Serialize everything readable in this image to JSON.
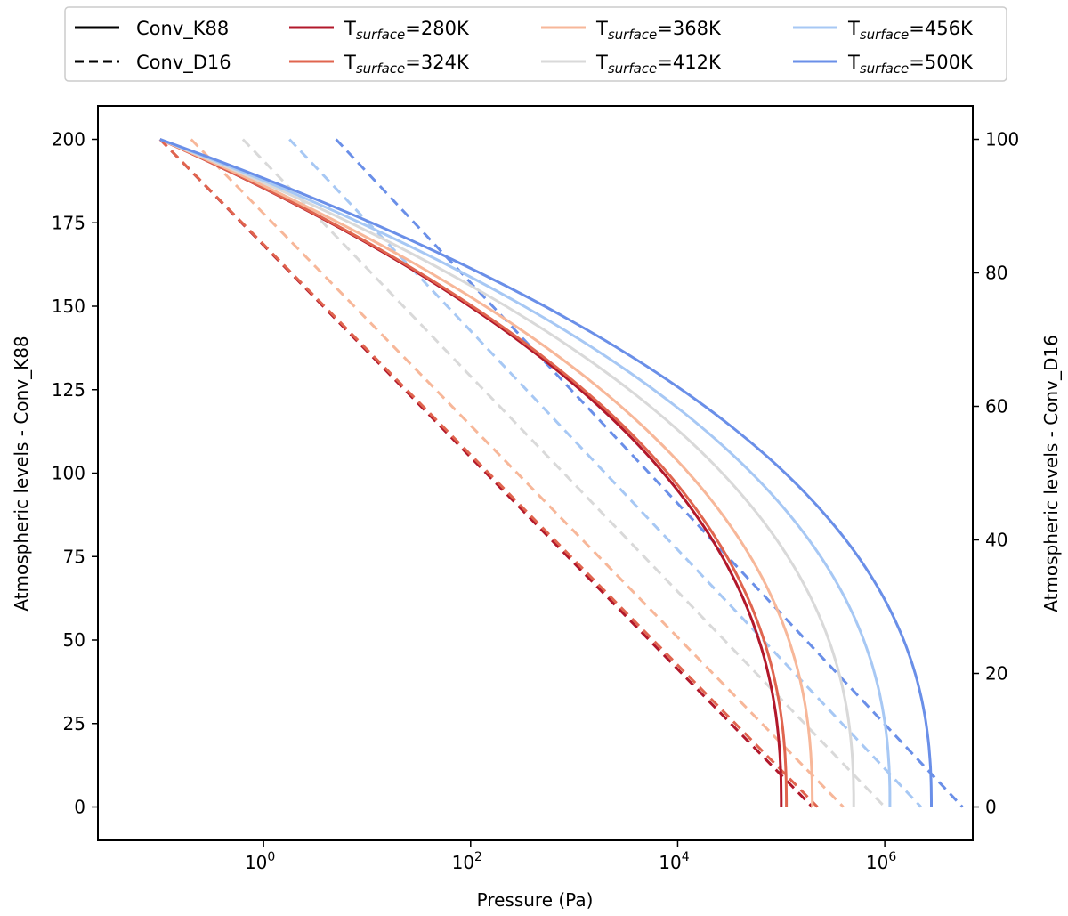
{
  "chart_data": {
    "type": "line",
    "title": "",
    "xlabel": "Pressure (Pa)",
    "ylabel_left": "Atmospheric levels - Conv_K88",
    "ylabel_right": "Atmospheric levels - Conv_D16",
    "x_scale": "log",
    "xlim_log10": [
      -1.6,
      6.85
    ],
    "x_ticks": [
      {
        "log10": 0,
        "base": "10",
        "exp": "0"
      },
      {
        "log10": 2,
        "base": "10",
        "exp": "2"
      },
      {
        "log10": 4,
        "base": "10",
        "exp": "4"
      },
      {
        "log10": 6,
        "base": "10",
        "exp": "6"
      }
    ],
    "ylim_left": [
      -10,
      210
    ],
    "yticks_left": [
      "0",
      "25",
      "50",
      "75",
      "100",
      "125",
      "150",
      "175",
      "200"
    ],
    "ylim_right": [
      -5,
      105
    ],
    "yticks_right": [
      "0",
      "20",
      "40",
      "60",
      "80",
      "100"
    ],
    "grid": false,
    "legend_position": "top-center, above plot",
    "legend": {
      "styles": [
        {
          "label": "Conv_K88",
          "dash": "solid"
        },
        {
          "label": "Conv_D16",
          "dash": "dashed"
        }
      ],
      "temperature_prefix": "T",
      "temperature_subscript": "surface",
      "temperatures": [
        "=280K",
        "=324K",
        "=368K",
        "=412K",
        "=456K",
        "=500K"
      ]
    },
    "series": [
      {
        "name": "Tsurface=280K",
        "color": "#b2182b",
        "surface_log10P": 5.0,
        "d16_top_log10P": -1.0
      },
      {
        "name": "Tsurface=324K",
        "color": "#e0654f",
        "surface_log10P": 5.05,
        "d16_top_log10P": -1.0
      },
      {
        "name": "Tsurface=368K",
        "color": "#f7b799",
        "surface_log10P": 5.3,
        "d16_top_log10P": -0.7
      },
      {
        "name": "Tsurface=412K",
        "color": "#d9d9d9",
        "surface_log10P": 5.7,
        "d16_top_log10P": -0.2
      },
      {
        "name": "Tsurface=456K",
        "color": "#a7c8f4",
        "surface_log10P": 6.05,
        "d16_top_log10P": 0.25
      },
      {
        "name": "Tsurface=500K",
        "color": "#6a8fe8",
        "surface_log10P": 6.45,
        "d16_top_log10P": 0.7
      }
    ],
    "k88_curve": {
      "top_level": 200,
      "top_log10P": -1.0,
      "description": "Conv_K88 levels (left axis, 0-200): x_log10P = top_log10P + (surface_log10P - top_log10P) * (1 - (1 - (200 - level)/200)^2)",
      "level_samples": [
        200,
        198,
        196,
        194,
        192,
        190,
        185,
        180,
        175,
        170,
        160,
        150,
        140,
        130,
        120,
        110,
        100,
        90,
        80,
        70,
        60,
        50,
        40,
        30,
        20,
        10,
        0
      ]
    },
    "d16_curve": {
      "description": "Conv_D16 levels (right axis, 0-100): log10P linear from d16_top_log10P at level 100 to (surface_log10P + 0.3) at level 0",
      "surface_offset_log10P": 0.3
    }
  }
}
